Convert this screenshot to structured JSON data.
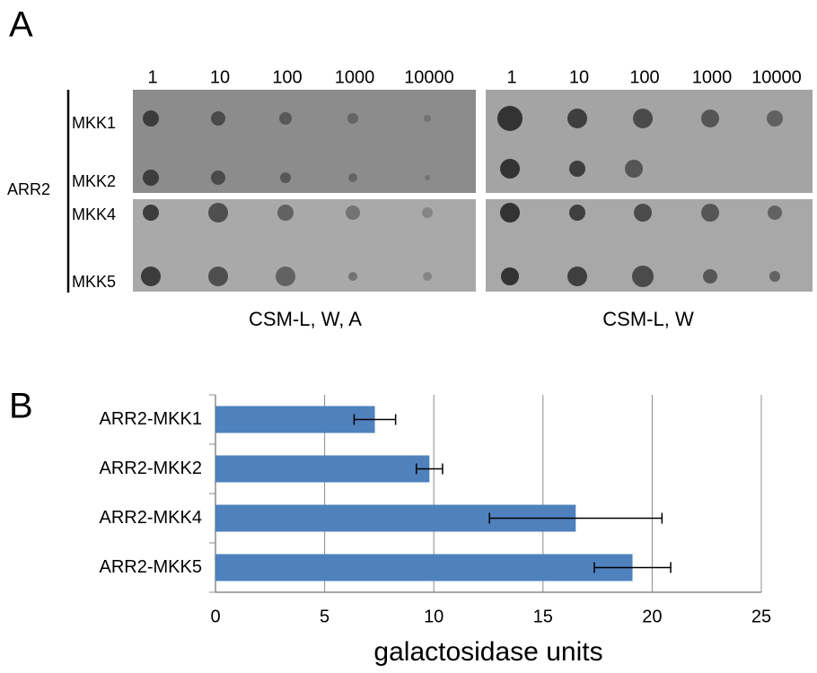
{
  "panel_a": {
    "label": "A",
    "row_group": "ARR2",
    "dilutions_left": [
      "1",
      "10",
      "100",
      "1000",
      "10000"
    ],
    "dilutions_right": [
      "1",
      "10",
      "100",
      "1000",
      "10000"
    ],
    "rows": [
      "MKK1",
      "MKK2",
      "MKK4",
      "MKK5"
    ],
    "captions": [
      "CSM-L, W, A",
      "CSM-L, W"
    ]
  },
  "panel_b": {
    "label": "B"
  },
  "chart_data": {
    "type": "bar",
    "orientation": "horizontal",
    "categories": [
      "ARR2-MKK1",
      "ARR2-MKK2",
      "ARR2-MKK4",
      "ARR2-MKK5"
    ],
    "series": [
      {
        "color": "#4f81bd",
        "values": [
          7.3,
          9.8,
          16.5,
          19.1
        ],
        "errors": [
          0.95,
          0.6,
          3.95,
          1.75
        ]
      }
    ],
    "xlabel": "galactosidase units",
    "xlim": [
      0,
      25
    ],
    "xticks": [
      0,
      5,
      10,
      15,
      20,
      25
    ],
    "grid": true
  }
}
